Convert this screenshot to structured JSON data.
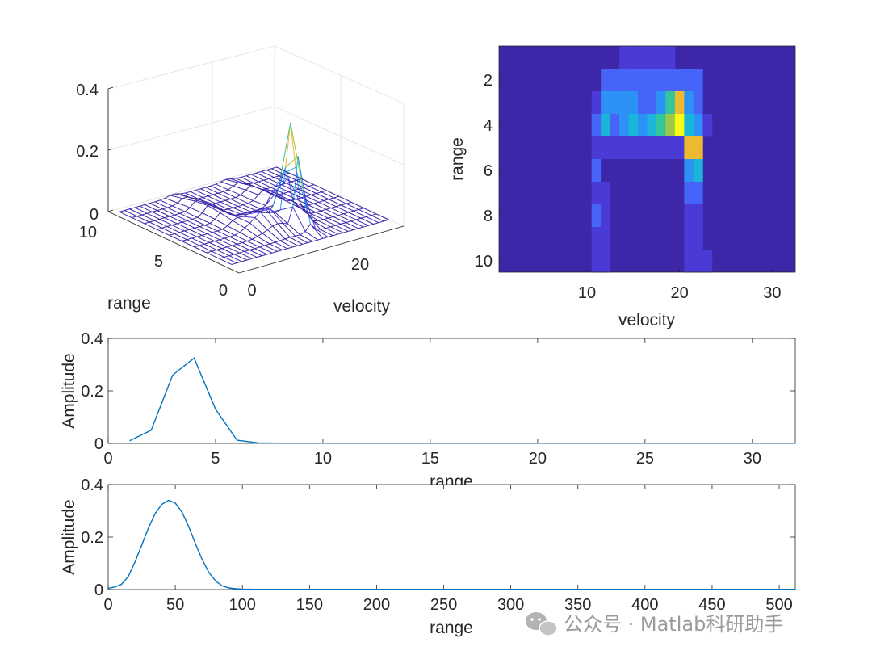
{
  "chart_data": [
    {
      "type": "surface",
      "xlabel": "velocity",
      "ylabel": "range",
      "zticks": [
        "0",
        "0.2",
        "0.4"
      ],
      "range_ticks": [
        "0",
        "5",
        "10"
      ],
      "velocity_ticks": [
        "0",
        "20"
      ],
      "zlim": [
        0,
        0.4
      ],
      "grid": true
    },
    {
      "type": "heatmap",
      "xlabel": "velocity",
      "ylabel": "range",
      "xticks": [
        "10",
        "20",
        "30"
      ],
      "yticks": [
        "2",
        "4",
        "6",
        "8",
        "10"
      ],
      "xlim": [
        0.5,
        32.5
      ],
      "ylim": [
        0.5,
        10.5
      ],
      "background": "#3e26a8",
      "colormap": [
        "#3e26a8",
        "#4a3bd6",
        "#4664f8",
        "#2c92f5",
        "#19b6d9",
        "#34c59a",
        "#9cc948",
        "#ebba31",
        "#f9fb14"
      ],
      "cells": [
        {
          "range": 1,
          "velocity": [
            14,
            15,
            16,
            17,
            18,
            19
          ],
          "level": 1
        },
        {
          "range": 2,
          "velocity": [
            12,
            13,
            14,
            15,
            16,
            17,
            18,
            19,
            20,
            21,
            22
          ],
          "level": 2
        },
        {
          "range": 3,
          "velocity": [
            11
          ],
          "level": 1
        },
        {
          "range": 3,
          "velocity": [
            12,
            13,
            14,
            15
          ],
          "level": 3
        },
        {
          "range": 3,
          "velocity": [
            16,
            17
          ],
          "level": 2
        },
        {
          "range": 3,
          "velocity": [
            18
          ],
          "level": 3
        },
        {
          "range": 3,
          "velocity": [
            19
          ],
          "level": 5
        },
        {
          "range": 3,
          "velocity": [
            20
          ],
          "level": 7
        },
        {
          "range": 3,
          "velocity": [
            21
          ],
          "level": 3
        },
        {
          "range": 3,
          "velocity": [
            22
          ],
          "level": 2
        },
        {
          "range": 4,
          "velocity": [
            11
          ],
          "level": 2
        },
        {
          "range": 4,
          "velocity": [
            12
          ],
          "level": 4
        },
        {
          "range": 4,
          "velocity": [
            13
          ],
          "level": 2
        },
        {
          "range": 4,
          "velocity": [
            14
          ],
          "level": 3
        },
        {
          "range": 4,
          "velocity": [
            15
          ],
          "level": 4
        },
        {
          "range": 4,
          "velocity": [
            16
          ],
          "level": 3
        },
        {
          "range": 4,
          "velocity": [
            17
          ],
          "level": 4
        },
        {
          "range": 4,
          "velocity": [
            18
          ],
          "level": 5
        },
        {
          "range": 4,
          "velocity": [
            19
          ],
          "level": 6
        },
        {
          "range": 4,
          "velocity": [
            20
          ],
          "level": 8
        },
        {
          "range": 4,
          "velocity": [
            21
          ],
          "level": 4
        },
        {
          "range": 4,
          "velocity": [
            22
          ],
          "level": 3
        },
        {
          "range": 4,
          "velocity": [
            23
          ],
          "level": 1
        },
        {
          "range": 5,
          "velocity": [
            11,
            12,
            13,
            14,
            15,
            16,
            17,
            18,
            19,
            20
          ],
          "level": 1
        },
        {
          "range": 5,
          "velocity": [
            21,
            22
          ],
          "level": 7
        },
        {
          "range": 6,
          "velocity": [
            11
          ],
          "level": 2
        },
        {
          "range": 6,
          "velocity": [
            12,
            13,
            14,
            15,
            16,
            17,
            18,
            19,
            20
          ],
          "level": 0
        },
        {
          "range": 6,
          "velocity": [
            21
          ],
          "level": 3
        },
        {
          "range": 6,
          "velocity": [
            22
          ],
          "level": 4
        },
        {
          "range": 7,
          "velocity": [
            11,
            12
          ],
          "level": 1
        },
        {
          "range": 7,
          "velocity": [
            21,
            22
          ],
          "level": 2
        },
        {
          "range": 8,
          "velocity": [
            11
          ],
          "level": 2
        },
        {
          "range": 8,
          "velocity": [
            12
          ],
          "level": 1
        },
        {
          "range": 8,
          "velocity": [
            21,
            22
          ],
          "level": 1
        },
        {
          "range": 9,
          "velocity": [
            11,
            12
          ],
          "level": 1
        },
        {
          "range": 9,
          "velocity": [
            21,
            22
          ],
          "level": 1
        },
        {
          "range": 10,
          "velocity": [
            11,
            12
          ],
          "level": 1
        },
        {
          "range": 10,
          "velocity": [
            21,
            22,
            23
          ],
          "level": 1
        }
      ]
    },
    {
      "type": "line",
      "xlabel": "range",
      "ylabel": "Amplitude",
      "xlim": [
        0,
        32
      ],
      "ylim": [
        0,
        0.4
      ],
      "xticks": [
        "0",
        "5",
        "10",
        "15",
        "20",
        "25",
        "30"
      ],
      "yticks": [
        "0",
        "0.2",
        "0.4"
      ],
      "color": "#0072bd",
      "x": [
        1,
        2,
        3,
        4,
        5,
        6,
        7,
        8,
        9,
        10,
        12,
        14,
        16,
        18,
        20,
        22,
        24,
        26,
        28,
        30,
        32
      ],
      "y": [
        0.01,
        0.05,
        0.26,
        0.325,
        0.13,
        0.012,
        0.002,
        0.001,
        0.001,
        0.001,
        0.001,
        0.001,
        0.001,
        0.001,
        0.001,
        0.001,
        0.001,
        0.001,
        0.001,
        0.001,
        0.001
      ]
    },
    {
      "type": "line",
      "xlabel": "range",
      "ylabel": "Amplitude",
      "xlim": [
        0,
        512
      ],
      "ylim": [
        0,
        0.4
      ],
      "xticks": [
        "0",
        "50",
        "100",
        "150",
        "200",
        "250",
        "300",
        "350",
        "400",
        "450",
        "500"
      ],
      "yticks": [
        "0",
        "0.2",
        "0.4"
      ],
      "color": "#0072bd",
      "x": [
        0,
        5,
        10,
        15,
        20,
        25,
        30,
        35,
        40,
        45,
        50,
        55,
        60,
        65,
        70,
        75,
        80,
        85,
        90,
        95,
        100,
        110,
        120,
        150,
        200,
        300,
        400,
        512
      ],
      "y": [
        0.005,
        0.01,
        0.02,
        0.05,
        0.105,
        0.17,
        0.235,
        0.29,
        0.325,
        0.34,
        0.33,
        0.295,
        0.24,
        0.175,
        0.115,
        0.065,
        0.033,
        0.014,
        0.006,
        0.003,
        0.002,
        0.001,
        0.001,
        0.001,
        0.001,
        0.001,
        0.001,
        0.001
      ]
    }
  ],
  "watermark": {
    "text": "公众号 · Matlab科研助手",
    "icon": "wechat-icon"
  }
}
